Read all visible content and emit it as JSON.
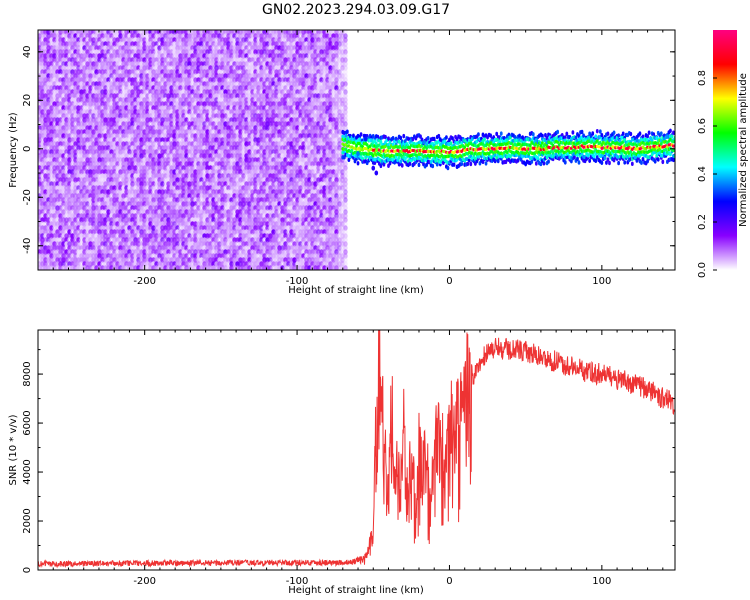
{
  "title": "GN02.2023.294.03.09.G17",
  "chart_data": [
    {
      "type": "heatmap",
      "title": "",
      "xlabel": "Height of straight line (km)",
      "ylabel": "Frequency (Hz)",
      "xlim": [
        -270,
        148
      ],
      "ylim": [
        -50,
        49
      ],
      "xticks": [
        -200,
        -100,
        0,
        100
      ],
      "xtick_labels": [
        "-200",
        "-100",
        "0",
        "100"
      ],
      "yticks": [
        -40,
        -20,
        0,
        20,
        40
      ],
      "ytick_labels": [
        "-40",
        "-20",
        "0",
        "20",
        "40"
      ],
      "noise_region_x": [
        -270,
        -70
      ],
      "signal_line": {
        "x": [
          -70,
          -60,
          -50,
          -40,
          -30,
          -20,
          -10,
          0,
          10,
          20,
          30,
          40,
          50,
          60,
          70,
          80,
          90,
          100,
          110,
          120,
          130,
          140,
          148
        ],
        "y": [
          2,
          0,
          -0.5,
          -1,
          -1,
          -1,
          -1,
          -1.5,
          -0.5,
          0,
          0,
          0.5,
          0,
          0,
          0.5,
          0.5,
          1,
          0.5,
          0.5,
          0,
          0.5,
          1,
          1.5
        ]
      },
      "colorbar": {
        "label": "Normalized spectral amplitude",
        "range": [
          0,
          1
        ],
        "ticks": [
          0.0,
          0.2,
          0.4,
          0.6,
          0.8
        ],
        "tick_labels": [
          "0.0",
          "0.2",
          "0.4",
          "0.6",
          "0.8"
        ],
        "colors": [
          "#ffffff",
          "#8800ff",
          "#0000ff",
          "#00ffff",
          "#00ff00",
          "#ffff00",
          "#ff0000",
          "#ff0080"
        ]
      }
    },
    {
      "type": "line",
      "title": "",
      "xlabel": "Height of straight line (km)",
      "ylabel": "SNR (10 * v/v)",
      "xlim": [
        -270,
        148
      ],
      "ylim": [
        0,
        9800
      ],
      "xticks": [
        -200,
        -100,
        0,
        100
      ],
      "xtick_labels": [
        "-200",
        "-100",
        "0",
        "100"
      ],
      "yticks": [
        0,
        2000,
        4000,
        6000,
        8000
      ],
      "ytick_labels": [
        "0",
        "2000",
        "4000",
        "6000",
        "8000"
      ],
      "color": "#ee3333",
      "series": [
        {
          "values": {
            "x": [
              -270,
              -200,
              -100,
              -65,
              -55,
              -50,
              -48,
              -47,
              -45,
              -43,
              -40,
              -38,
              -35,
              -32,
              -30,
              -28,
              -25,
              -22,
              -20,
              -18,
              -15,
              -12,
              -10,
              -8,
              -5,
              -2,
              0,
              5,
              10,
              15,
              20,
              25,
              30,
              35,
              40,
              45,
              50,
              60,
              70,
              80,
              90,
              100,
              110,
              120,
              130,
              140,
              148
            ],
            "y": [
              250,
              280,
              300,
              300,
              500,
              1500,
              6500,
              7000,
              8500,
              5000,
              3000,
              6500,
              4000,
              3500,
              5500,
              3000,
              4500,
              2500,
              5000,
              4000,
              4500,
              2800,
              5000,
              5300,
              4800,
              5200,
              5600,
              6200,
              7000,
              7800,
              8500,
              8900,
              9100,
              9000,
              9000,
              9000,
              8900,
              8700,
              8500,
              8300,
              8100,
              8000,
              7800,
              7600,
              7400,
              7000,
              6800
            ]
          }
        }
      ]
    }
  ]
}
